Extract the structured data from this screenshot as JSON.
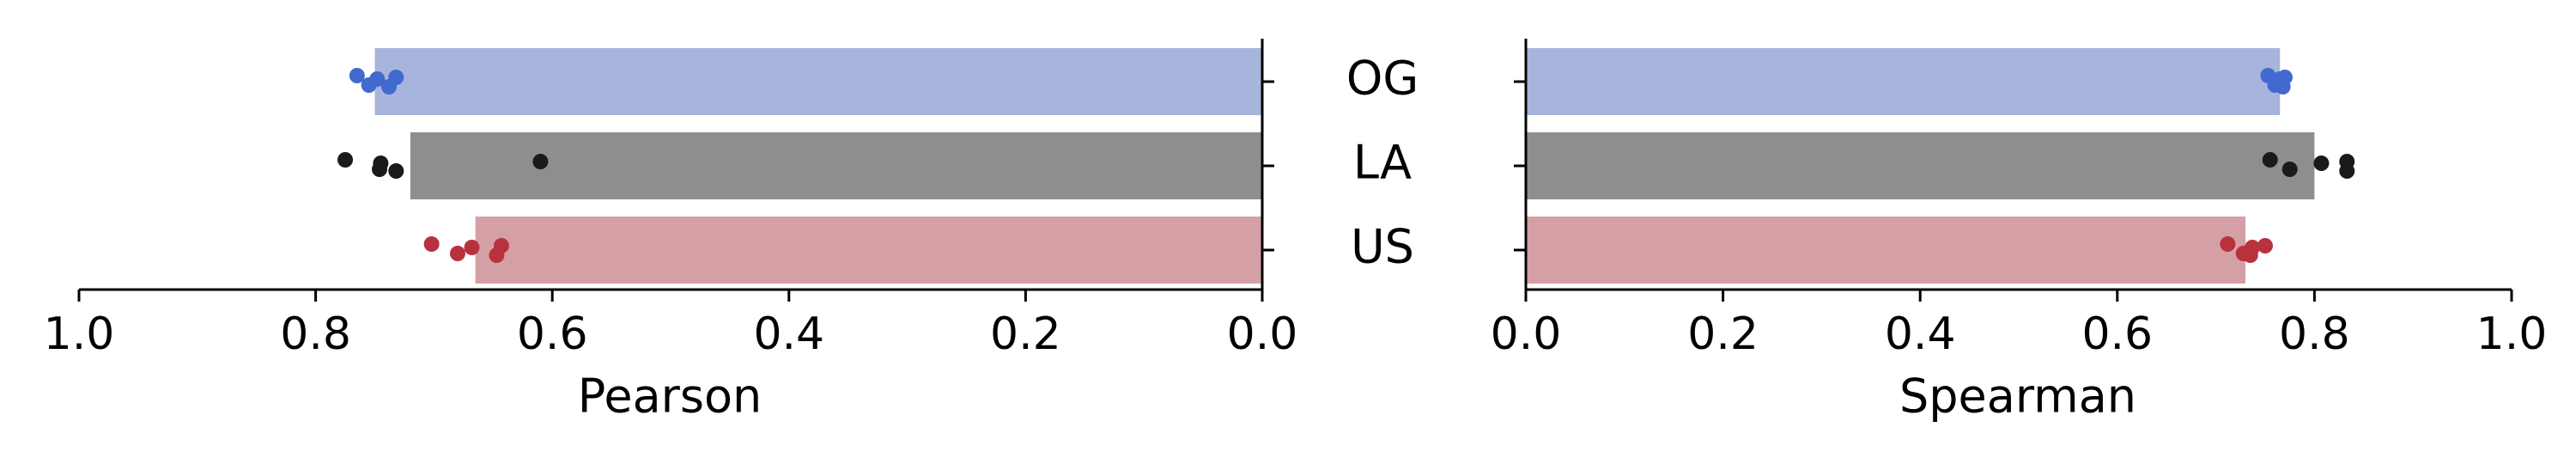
{
  "colors": {
    "OG": {
      "bar": "#a7b5dc",
      "point": "#4169cf"
    },
    "LA": {
      "bar": "#8e8e8e",
      "point": "#1a1a1a"
    },
    "US": {
      "bar": "#d5a0a5",
      "point": "#b8323e"
    }
  },
  "chart_data": [
    {
      "type": "bar",
      "orientation": "horizontal",
      "x_reversed": true,
      "xlabel": "Pearson",
      "xlim": [
        0,
        1
      ],
      "xticks": [
        "1.0",
        "0.8",
        "0.6",
        "0.4",
        "0.2",
        "0.0"
      ],
      "categories": [
        "OG",
        "LA",
        "US"
      ],
      "values": [
        0.75,
        0.72,
        0.665
      ],
      "points": {
        "OG": [
          0.765,
          0.755,
          0.748,
          0.738,
          0.732
        ],
        "LA": [
          0.775,
          0.746,
          0.745,
          0.732,
          0.61
        ],
        "US": [
          0.702,
          0.68,
          0.668,
          0.647,
          0.643
        ]
      },
      "grid": false
    },
    {
      "type": "bar",
      "orientation": "horizontal",
      "x_reversed": false,
      "xlabel": "Spearman",
      "xlim": [
        0,
        1
      ],
      "xticks": [
        "0.0",
        "0.2",
        "0.4",
        "0.6",
        "0.8",
        "1.0"
      ],
      "categories": [
        "OG",
        "LA",
        "US"
      ],
      "values": [
        0.765,
        0.8,
        0.73
      ],
      "points": {
        "OG": [
          0.753,
          0.76,
          0.765,
          0.768,
          0.77
        ],
        "LA": [
          0.755,
          0.775,
          0.807,
          0.833,
          0.833
        ],
        "US": [
          0.712,
          0.728,
          0.737,
          0.735,
          0.75
        ]
      },
      "grid": false
    }
  ]
}
